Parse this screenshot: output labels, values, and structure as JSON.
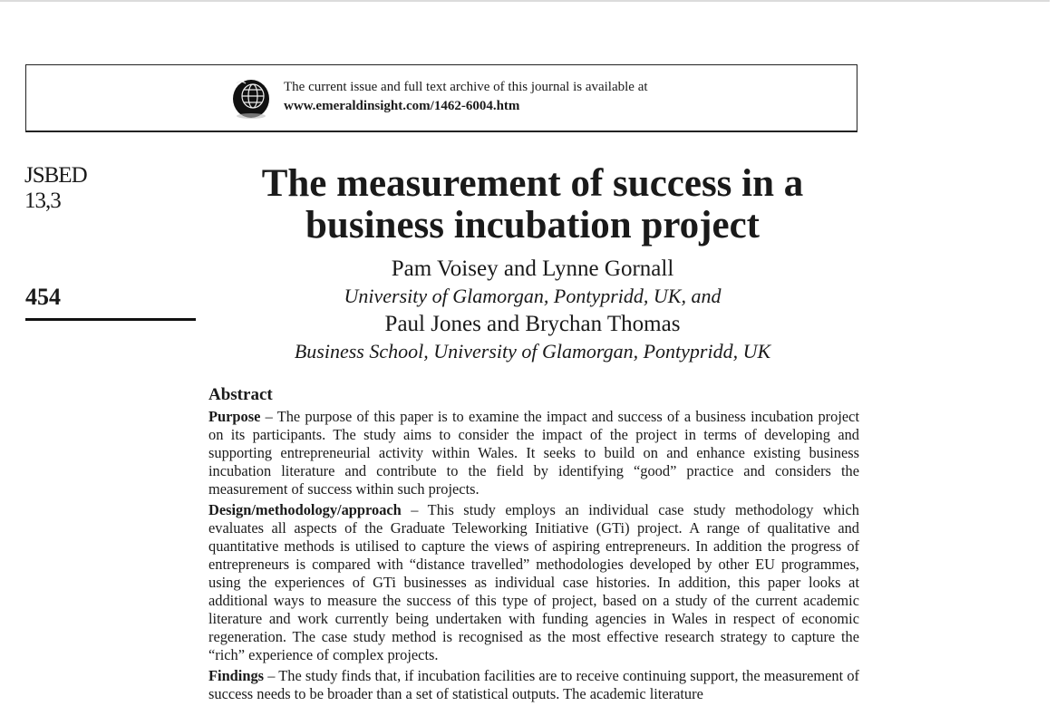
{
  "banner": {
    "line1": "The current issue and full text archive of this journal is available at",
    "url": "www.emeraldinsight.com/1462-6004.htm",
    "logo_icon": "globe-icon"
  },
  "sidebar": {
    "journal": "JSBED",
    "volume": "13,3",
    "page_number": "454"
  },
  "article": {
    "title_line1": "The measurement of success in a",
    "title_line2": "business incubation project",
    "authors1": "Pam Voisey and Lynne Gornall",
    "affiliation1": "University of Glamorgan, Pontypridd, UK, and",
    "authors2": "Paul Jones and Brychan Thomas",
    "affiliation2": "Business School, University of Glamorgan, Pontypridd, UK"
  },
  "abstract": {
    "heading": "Abstract",
    "sections": [
      {
        "label": "Purpose",
        "text": " – The purpose of this paper is to examine the impact and success of a business incubation project on its participants. The study aims to consider the impact of the project in terms of developing and supporting entrepreneurial activity within Wales. It seeks to build on and enhance existing business incubation literature and contribute to the field by identifying “good” practice and considers the measurement of success within such projects."
      },
      {
        "label": "Design/methodology/approach",
        "text": " – This study employs an individual case study methodology which evaluates all aspects of the Graduate Teleworking Initiative (GTi) project. A range of qualitative and quantitative methods is utilised to capture the views of aspiring entrepreneurs. In addition the progress of entrepreneurs is compared with “distance travelled” methodologies developed by other EU programmes, using the experiences of GTi businesses as individual case histories. In addition, this paper looks at additional ways to measure the success of this type of project, based on a study of the current academic literature and work currently being undertaken with funding agencies in Wales in respect of economic regeneration. The case study method is recognised as the most effective research strategy to capture the “rich” experience of complex projects."
      },
      {
        "label": "Findings",
        "text": " – The study finds that, if incubation facilities are to receive continuing support, the measurement of success needs to be broader than a set of statistical outputs. The academic literature"
      }
    ]
  }
}
